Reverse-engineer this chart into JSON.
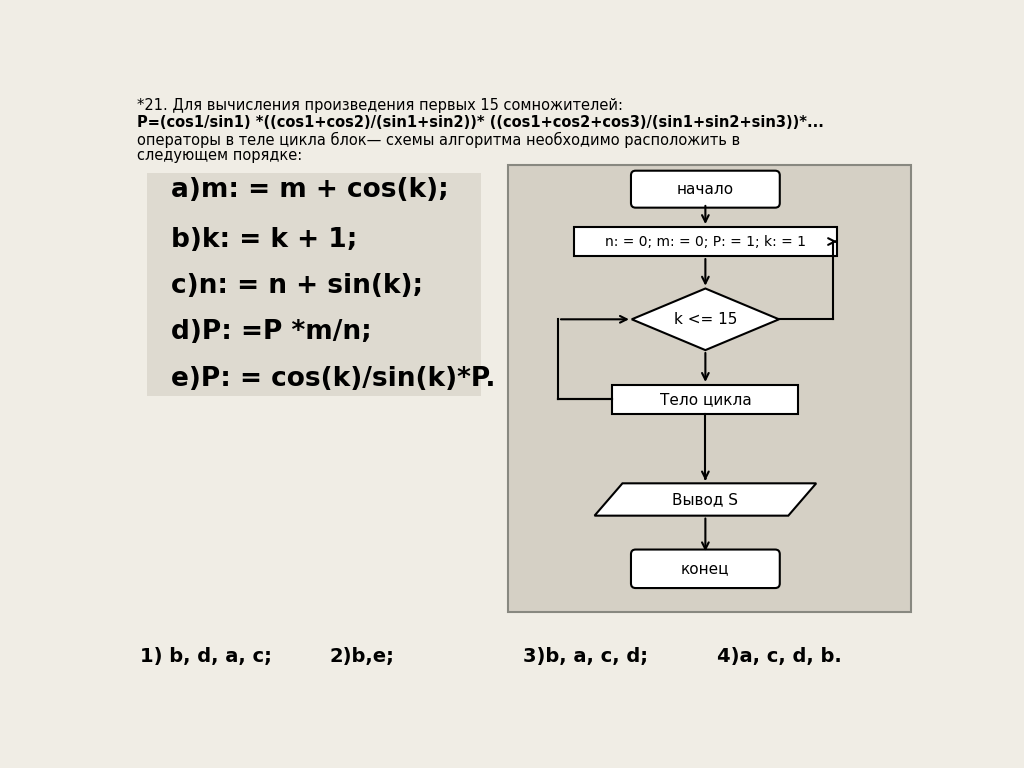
{
  "title_line1": "*21. Для вычисления произведения первых 15 сомножителей:",
  "title_line2_bold": "P=(cos1/sin1) *((cos1+cos2)/(sin1+sin2))* ((cos1+cos2+cos3)/(sin1+sin2+sin3))*...",
  "title_line3": "операторы в теле цикла блок— схемы алгоритма необходимо расположить в",
  "title_line4": "следующем порядке:",
  "items": [
    "a)m: = m + cos(k);",
    "b)k: = k + 1;",
    "c)n: = n + sin(k);",
    "d)P: =P *m/n;",
    "e)P: = cos(k)/sin(k)*P."
  ],
  "flowchart": {
    "start_label": "начало",
    "init_label": "n: = 0; m: = 0; P: = 1; k: = 1",
    "condition_label": "k <= 15",
    "body_label": "Тело цикла",
    "output_label": "Вывод S",
    "end_label": "конец"
  },
  "answers": [
    "1) b, d, a, c;",
    "2)b,e;",
    "3)b, a, c, d;",
    "4)a, c, d, b."
  ],
  "bg_color": "#f0ede5",
  "items_box_color": "#dedad0",
  "chart_bg_color": "#d5d0c5"
}
